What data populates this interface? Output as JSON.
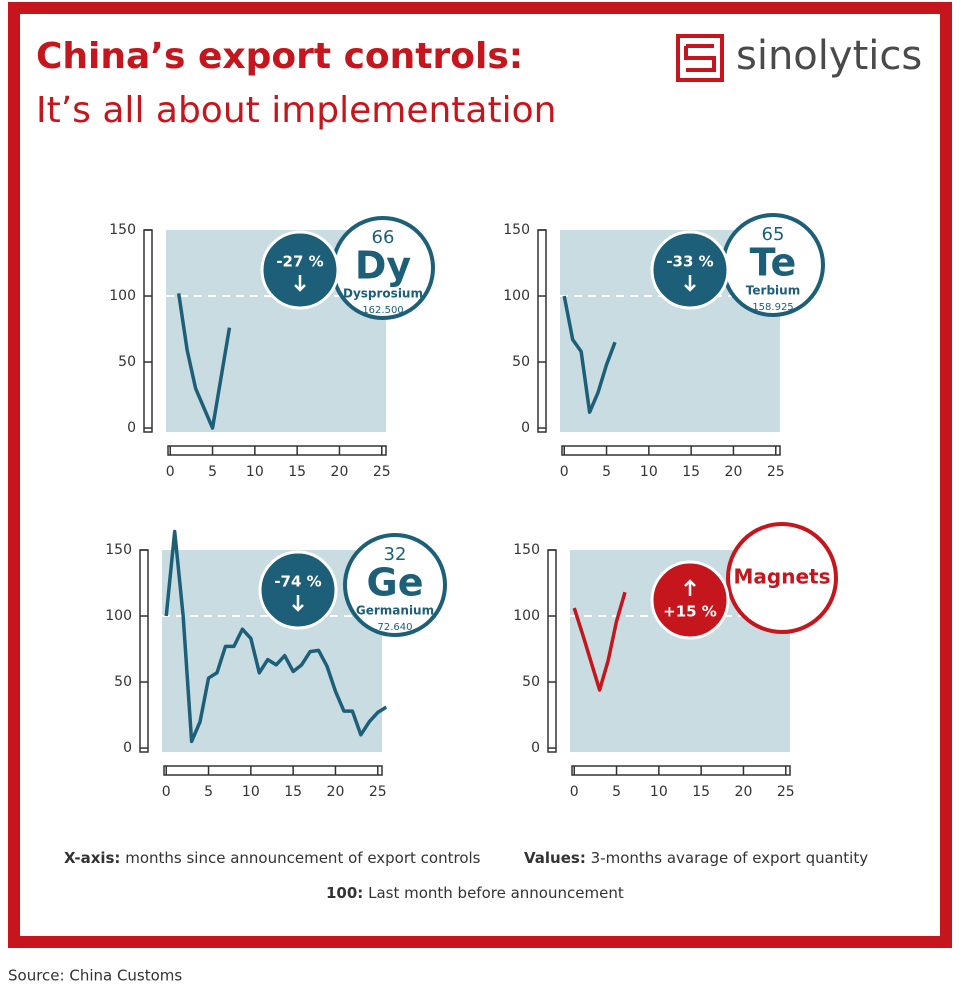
{
  "title": "China’s export controls:",
  "subtitle": "It’s all about implementation",
  "logo": "sinolytics",
  "chart_data": [
    {
      "type": "line",
      "color": "#1d5f78",
      "background": "#c9dce2",
      "badge": {
        "number": 66,
        "symbol": "Dy",
        "name": "Dysprosium",
        "mass": "162.500"
      },
      "change": "-27 %",
      "direction": "down",
      "x": [
        1,
        2,
        3,
        5,
        7
      ],
      "values": [
        102,
        59,
        30,
        0,
        76
      ],
      "xlim": [
        -0.5,
        25.5
      ],
      "xticks": [
        0,
        5,
        10,
        15,
        20,
        25
      ],
      "ylim": [
        -3,
        150
      ],
      "yticks": [
        0,
        50,
        100,
        150
      ],
      "reference": 100
    },
    {
      "type": "line",
      "color": "#1d5f78",
      "background": "#c9dce2",
      "badge": {
        "number": 65,
        "symbol": "Te",
        "name": "Terbium",
        "mass": "158.925"
      },
      "change": "-33 %",
      "direction": "down",
      "x": [
        0,
        1,
        2,
        3,
        4,
        5,
        6
      ],
      "values": [
        100,
        67,
        58,
        12,
        27,
        48,
        65
      ],
      "xlim": [
        -0.5,
        25.5
      ],
      "xticks": [
        0,
        5,
        10,
        15,
        20,
        25
      ],
      "ylim": [
        -3,
        150
      ],
      "yticks": [
        0,
        50,
        100,
        150
      ],
      "reference": 100
    },
    {
      "type": "line",
      "color": "#1d5f78",
      "background": "#c9dce2",
      "badge": {
        "number": 32,
        "symbol": "Ge",
        "name": "Germanium",
        "mass": "72.640"
      },
      "change": "-74 %",
      "direction": "down",
      "x": [
        0,
        1,
        2,
        3,
        4,
        5,
        6,
        7,
        8,
        9,
        10,
        11,
        12,
        13,
        14,
        15,
        16,
        17,
        18,
        19,
        20,
        21,
        22,
        23,
        24,
        25,
        26
      ],
      "values": [
        100,
        164,
        100,
        5,
        20,
        53,
        57,
        77,
        77,
        90,
        83,
        57,
        67,
        63,
        70,
        58,
        63,
        73,
        74,
        62,
        43,
        28,
        28,
        10,
        20,
        27,
        31
      ],
      "xlim": [
        -0.5,
        25.5
      ],
      "xticks": [
        0,
        5,
        10,
        15,
        20,
        25
      ],
      "ylim": [
        -3,
        150
      ],
      "yticks": [
        0,
        50,
        100,
        150
      ],
      "reference": 100
    },
    {
      "type": "line",
      "color": "#c4161c",
      "background": "#c9dce2",
      "badge": {
        "label": "Magnets"
      },
      "change": "+15 %",
      "direction": "up",
      "x": [
        0,
        1,
        3,
        4,
        5,
        6
      ],
      "values": [
        106,
        86,
        44,
        66,
        96,
        118
      ],
      "xlim": [
        -0.5,
        25.5
      ],
      "xticks": [
        0,
        5,
        10,
        15,
        20,
        25
      ],
      "ylim": [
        -3,
        150
      ],
      "yticks": [
        0,
        50,
        100,
        150
      ],
      "reference": 100
    }
  ],
  "notes": {
    "x_label": "X-axis:",
    "x_text": "months since announcement of export controls",
    "values_label": "Values:",
    "values_text": "3-months avarage of export quantity",
    "ref_label": "100:",
    "ref_text": "Last month before announcement"
  },
  "source": "Source: China Customs"
}
